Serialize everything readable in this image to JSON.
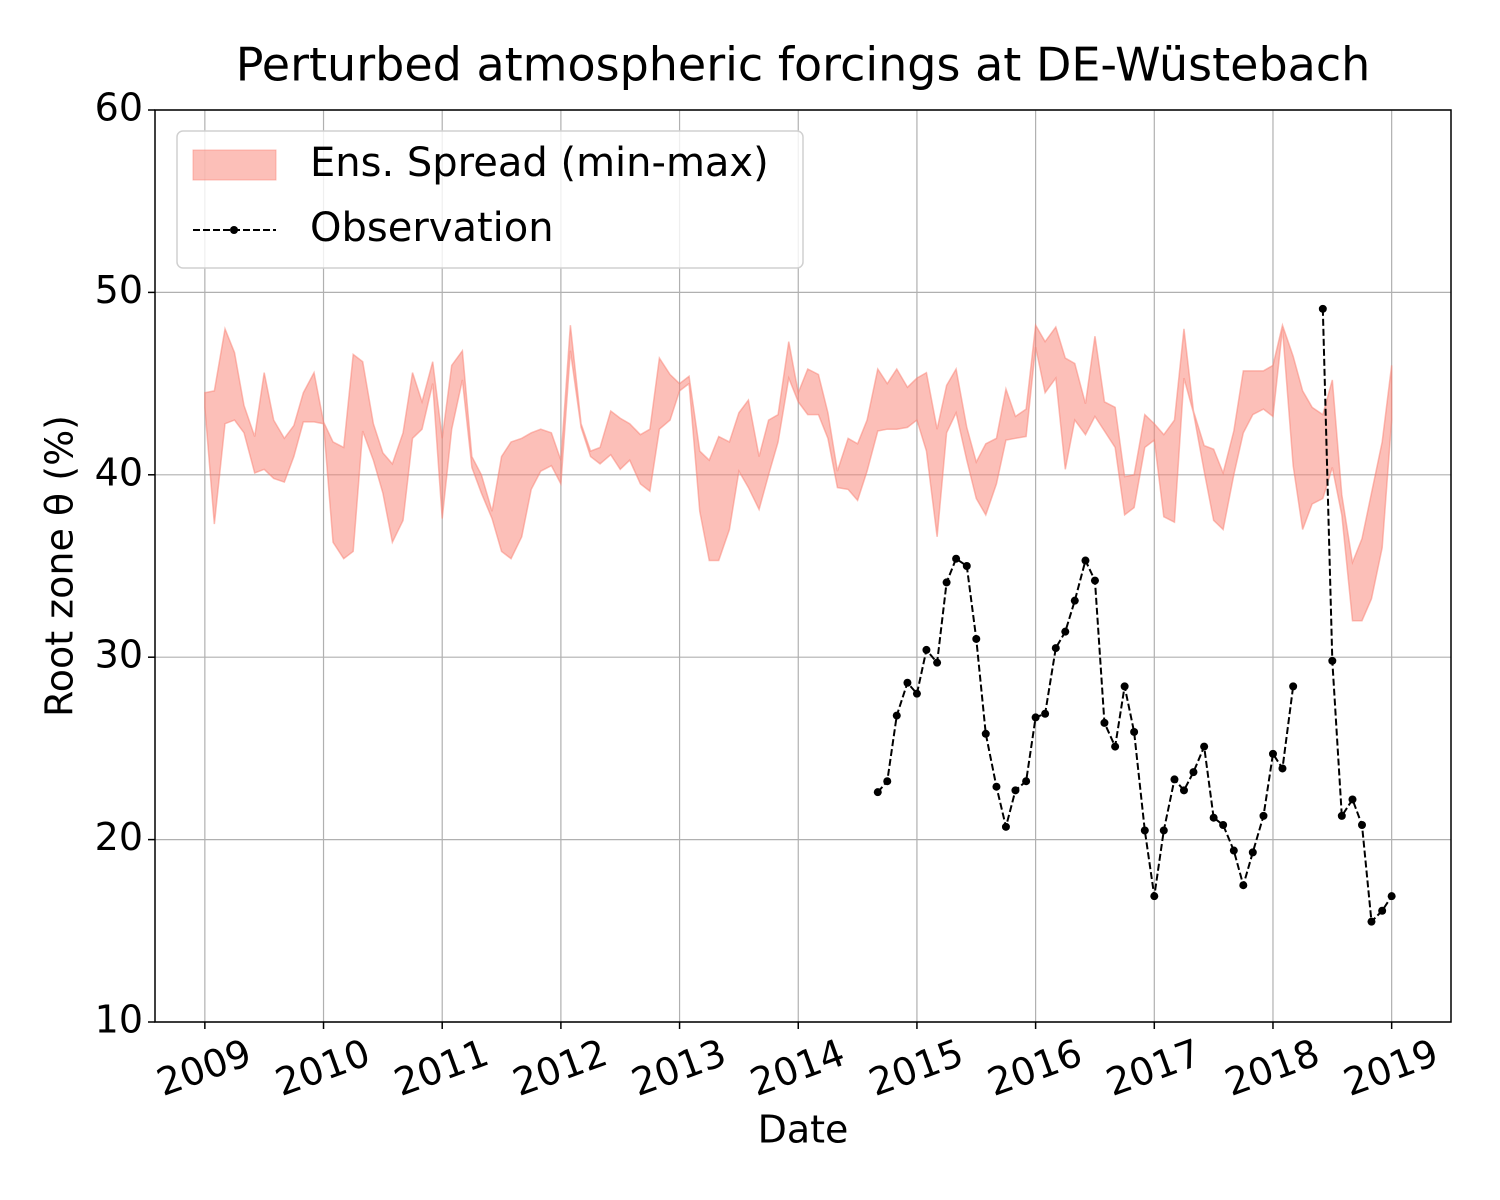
{
  "chart_data": {
    "type": "line",
    "title": "Perturbed atmospheric forcings at DE-Wüstebach",
    "xlabel": "Date",
    "ylabel": "Root zone θ  (%)",
    "xlim": [
      2008.58,
      2019.5
    ],
    "xticks": [
      2009,
      2010,
      2011,
      2012,
      2013,
      2014,
      2015,
      2016,
      2017,
      2018,
      2019
    ],
    "ylim": [
      10,
      60
    ],
    "yticks": [
      10,
      20,
      30,
      40,
      50,
      60
    ],
    "grid": true,
    "legend": "upper left",
    "x": [
      2009,
      2009.08,
      2009.17,
      2009.25,
      2009.33,
      2009.42,
      2009.5,
      2009.58,
      2009.67,
      2009.75,
      2009.83,
      2009.92,
      2010,
      2010.08,
      2010.17,
      2010.25,
      2010.33,
      2010.42,
      2010.5,
      2010.58,
      2010.67,
      2010.75,
      2010.83,
      2010.92,
      2011,
      2011.08,
      2011.17,
      2011.25,
      2011.33,
      2011.42,
      2011.5,
      2011.58,
      2011.67,
      2011.75,
      2011.83,
      2011.92,
      2012,
      2012.08,
      2012.17,
      2012.25,
      2012.33,
      2012.42,
      2012.5,
      2012.58,
      2012.67,
      2012.75,
      2012.83,
      2012.92,
      2013,
      2013.08,
      2013.17,
      2013.25,
      2013.33,
      2013.42,
      2013.5,
      2013.58,
      2013.67,
      2013.75,
      2013.83,
      2013.92,
      2014,
      2014.08,
      2014.17,
      2014.25,
      2014.33,
      2014.42,
      2014.5,
      2014.58,
      2014.67,
      2014.75,
      2014.83,
      2014.92,
      2015,
      2015.08,
      2015.17,
      2015.25,
      2015.33,
      2015.42,
      2015.5,
      2015.58,
      2015.67,
      2015.75,
      2015.83,
      2015.92,
      2016,
      2016.08,
      2016.17,
      2016.25,
      2016.33,
      2016.42,
      2016.5,
      2016.58,
      2016.67,
      2016.75,
      2016.83,
      2016.92,
      2017,
      2017.08,
      2017.17,
      2017.25,
      2017.33,
      2017.42,
      2017.5,
      2017.58,
      2017.67,
      2017.75,
      2017.83,
      2017.92,
      2018,
      2018.08,
      2018.17,
      2018.25,
      2018.33,
      2018.42,
      2018.5,
      2018.58,
      2018.67,
      2018.75,
      2018.83,
      2018.92,
      2019
    ],
    "series": [
      {
        "name": "Ens. Spread (min-max)",
        "color": "#fa8072",
        "upper": [
          44.5,
          44.6,
          48.0,
          46.7,
          43.8,
          42.1,
          45.6,
          43.0,
          42.0,
          42.7,
          44.5,
          45.6,
          42.9,
          41.8,
          41.5,
          46.6,
          46.2,
          42.8,
          41.2,
          40.6,
          42.3,
          45.6,
          44.0,
          46.2,
          42.0,
          46.0,
          46.8,
          41.0,
          40.0,
          38.0,
          41.0,
          41.8,
          42.0,
          42.3,
          42.5,
          42.3,
          40.8,
          48.2,
          42.8,
          41.3,
          41.5,
          43.5,
          43.1,
          42.8,
          42.2,
          42.5,
          46.4,
          45.5,
          45.0,
          45.4,
          41.3,
          40.8,
          42.1,
          41.8,
          43.4,
          44.1,
          41.0,
          43.0,
          43.3,
          47.3,
          44.5,
          45.8,
          45.5,
          43.4,
          40.2,
          42.0,
          41.7,
          43.0,
          45.8,
          45.0,
          45.8,
          44.8,
          45.3,
          45.6,
          42.5,
          44.9,
          45.8,
          42.6,
          40.7,
          41.7,
          42.0,
          44.7,
          43.2,
          43.6,
          48.2,
          47.3,
          48.1,
          46.4,
          46.1,
          43.9,
          47.6,
          44.0,
          43.7,
          39.9,
          40.0,
          43.3,
          42.8,
          42.2,
          43.0,
          48.0,
          43.5,
          41.6,
          41.4,
          40.1,
          42.4,
          45.7,
          45.7,
          45.7,
          46.0,
          48.2,
          46.5,
          44.6,
          43.7,
          43.3,
          45.2,
          38.9,
          35.2,
          36.5,
          39.0,
          41.8,
          46.0
        ],
        "lower": [
          43.7,
          37.3,
          42.8,
          43.0,
          42.3,
          40.1,
          40.3,
          39.8,
          39.6,
          41.0,
          42.9,
          42.9,
          42.8,
          36.3,
          35.4,
          35.8,
          42.4,
          40.8,
          39.0,
          36.3,
          37.5,
          42.0,
          42.5,
          45.0,
          37.6,
          42.5,
          45.2,
          40.4,
          39.0,
          37.6,
          35.8,
          35.4,
          36.6,
          39.2,
          40.2,
          40.5,
          39.5,
          46.8,
          42.6,
          41.0,
          40.6,
          41.1,
          40.3,
          40.8,
          39.5,
          39.1,
          42.5,
          43.0,
          44.6,
          45.0,
          38.0,
          35.3,
          35.3,
          37.0,
          40.2,
          39.3,
          38.1,
          40.0,
          41.8,
          45.3,
          44.0,
          43.3,
          43.3,
          42.0,
          39.3,
          39.2,
          38.6,
          40.2,
          42.4,
          42.5,
          42.5,
          42.6,
          43.0,
          41.3,
          36.6,
          42.3,
          43.4,
          40.8,
          38.7,
          37.8,
          39.5,
          41.9,
          42.0,
          42.1,
          47.0,
          44.5,
          45.3,
          40.3,
          43.0,
          42.2,
          43.2,
          42.4,
          41.5,
          37.8,
          38.2,
          41.5,
          41.9,
          37.7,
          37.4,
          45.3,
          43.4,
          40.2,
          37.5,
          37.0,
          40.0,
          42.3,
          43.3,
          43.6,
          43.2,
          48.0,
          40.5,
          37.0,
          38.4,
          38.7,
          40.4,
          37.8,
          32.0,
          32.0,
          33.2,
          36.0,
          43.0
        ]
      },
      {
        "name": "Observation",
        "color": "#000000",
        "values": [
          null,
          null,
          null,
          null,
          null,
          null,
          null,
          null,
          null,
          null,
          null,
          null,
          null,
          null,
          null,
          null,
          null,
          null,
          null,
          null,
          null,
          null,
          null,
          null,
          null,
          null,
          null,
          null,
          null,
          null,
          null,
          null,
          null,
          null,
          null,
          null,
          null,
          null,
          null,
          null,
          null,
          null,
          null,
          null,
          null,
          null,
          null,
          null,
          null,
          null,
          null,
          null,
          null,
          null,
          null,
          null,
          null,
          null,
          null,
          null,
          null,
          null,
          null,
          null,
          null,
          null,
          null,
          null,
          22.6,
          23.2,
          26.8,
          28.6,
          28.0,
          30.4,
          29.7,
          34.1,
          35.4,
          35.0,
          31.0,
          25.8,
          22.9,
          20.7,
          22.7,
          23.2,
          26.7,
          26.9,
          30.5,
          31.4,
          33.1,
          35.3,
          34.2,
          26.4,
          25.1,
          28.4,
          25.9,
          20.5,
          16.9,
          20.5,
          23.3,
          22.7,
          23.7,
          25.1,
          21.2,
          20.8,
          19.4,
          17.5,
          19.3,
          21.3,
          24.7,
          23.9,
          28.4,
          null,
          null,
          49.1,
          29.8,
          21.3,
          22.2,
          20.8,
          15.5,
          16.1,
          16.9
        ]
      }
    ]
  }
}
